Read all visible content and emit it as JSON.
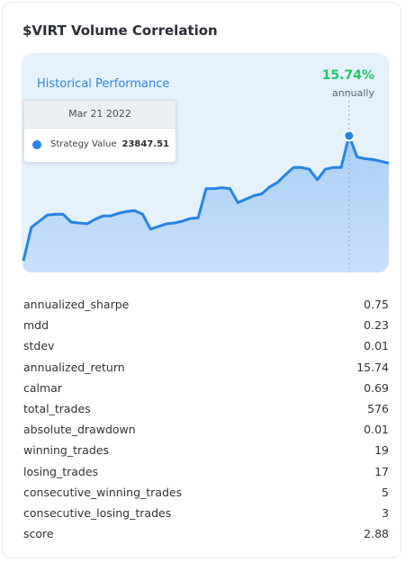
{
  "card": {
    "title": "$VIRT Volume Correlation"
  },
  "chart": {
    "header_label": "Historical Performance",
    "performance_value": "15.74%",
    "performance_period": "annually",
    "tooltip": {
      "date": "Mar 21 2022",
      "series_name": "Strategy Value",
      "value": "23847.51"
    },
    "colors": {
      "line": "#2584e4",
      "fill": "#a9cef5",
      "background": "#e5f1fd",
      "accent_green": "#22c667"
    }
  },
  "chart_data": {
    "type": "area",
    "series": [
      {
        "values": [
          0.04,
          0.42,
          0.49,
          0.56,
          0.57,
          0.57,
          0.48,
          0.47,
          0.46,
          0.51,
          0.55,
          0.55,
          0.58,
          0.6,
          0.61,
          0.57,
          0.4,
          0.43,
          0.46,
          0.47,
          0.49,
          0.52,
          0.53,
          0.86,
          0.86,
          0.87,
          0.86,
          0.7,
          0.74,
          0.78,
          0.8,
          0.88,
          0.93,
          1.02,
          1.1,
          1.1,
          1.08,
          0.96,
          1.08,
          1.1,
          1.1,
          1.46,
          1.22,
          1.2,
          1.19,
          1.17,
          1.15
        ]
      }
    ],
    "highlight_index": 41
  },
  "metrics": [
    {
      "name": "annualized_sharpe",
      "value": "0.75"
    },
    {
      "name": "mdd",
      "value": "0.23"
    },
    {
      "name": "stdev",
      "value": "0.01"
    },
    {
      "name": "annualized_return",
      "value": "15.74"
    },
    {
      "name": "calmar",
      "value": "0.69"
    },
    {
      "name": "total_trades",
      "value": "576"
    },
    {
      "name": "absolute_drawdown",
      "value": "0.01"
    },
    {
      "name": "winning_trades",
      "value": "19"
    },
    {
      "name": "losing_trades",
      "value": "17"
    },
    {
      "name": "consecutive_winning_trades",
      "value": "5"
    },
    {
      "name": "consecutive_losing_trades",
      "value": "3"
    },
    {
      "name": "score",
      "value": "2.88"
    }
  ]
}
